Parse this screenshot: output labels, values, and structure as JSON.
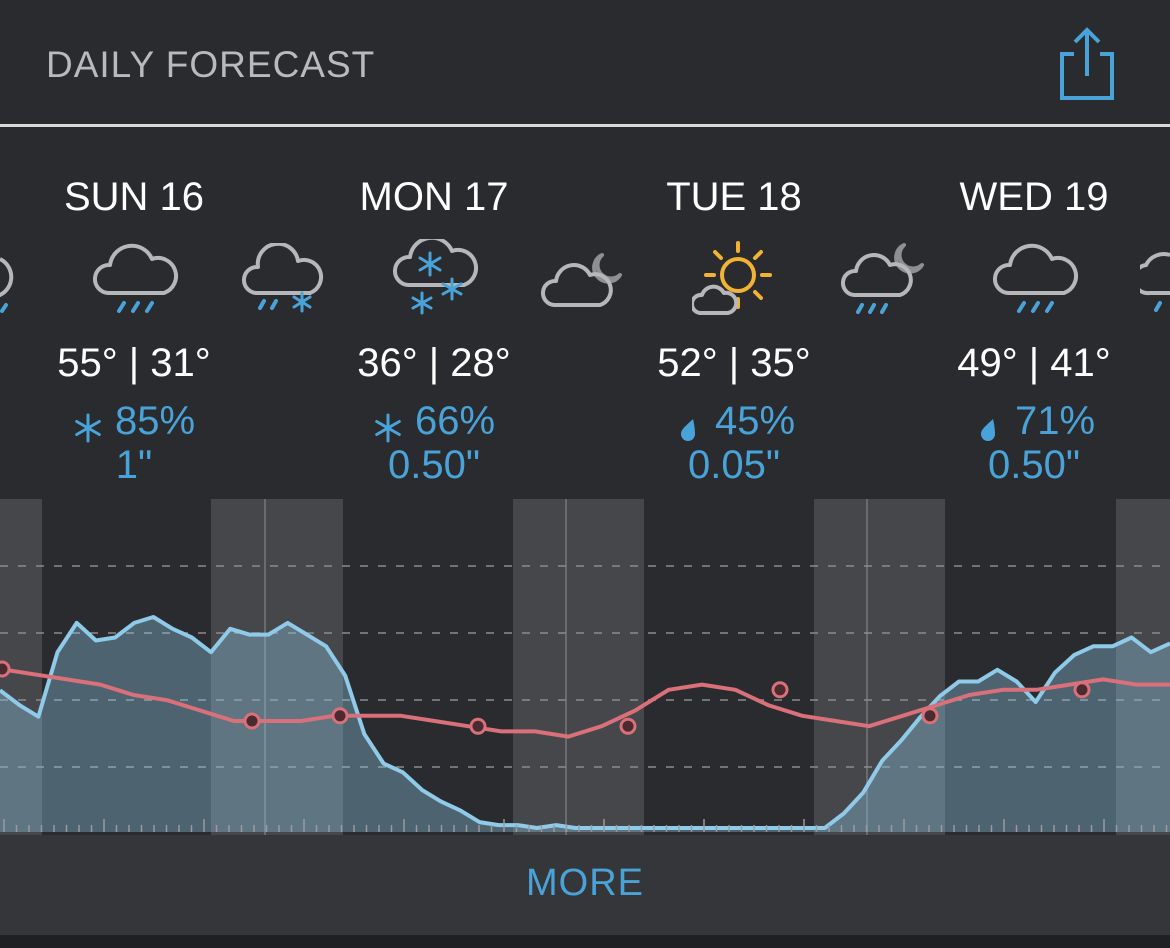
{
  "header": {
    "title": "DAILY FORECAST",
    "share_icon": "share-icon"
  },
  "days": [
    {
      "name": "SUN 16",
      "temp": "55° | 31°",
      "precip_type": "snow",
      "prob": "85%",
      "amount": "1\"",
      "icon": "rain-cloud-icon"
    },
    {
      "name": "MON 17",
      "temp": "36° | 28°",
      "precip_type": "snow",
      "prob": "66%",
      "amount": "0.50\"",
      "icon": "snow-cloud-icon"
    },
    {
      "name": "TUE 18",
      "temp": "52° | 35°",
      "precip_type": "rain",
      "prob": "45%",
      "amount": "0.05\"",
      "icon": "sun-cloud-icon"
    },
    {
      "name": "WED 19",
      "temp": "49° | 41°",
      "precip_type": "rain",
      "prob": "71%",
      "amount": "0.50\"",
      "icon": "rain-cloud-icon"
    }
  ],
  "night_icons": [
    "rain-cloud-night-icon",
    "snow-rain-cloud-night-icon",
    "cloud-moon-night-icon",
    "rain-cloud-moon-night-icon",
    "rain-cloud-night-icon"
  ],
  "colors": {
    "accent": "#4aa3d8",
    "temperature_line": "#d9707a",
    "precip_area": "#8fcbe9",
    "sun_icon": "#f2b233"
  },
  "chart_data": {
    "type": "area",
    "series": [
      {
        "kind": "precip_probability",
        "values": [
          47,
          42,
          38,
          60,
          70,
          64,
          65,
          70,
          72,
          68,
          65,
          60,
          68,
          66,
          66,
          70,
          66,
          62,
          52,
          32,
          22,
          19,
          13,
          9,
          6,
          2,
          1,
          1,
          0,
          1,
          0,
          0,
          0,
          0,
          0,
          0,
          -1,
          -2,
          -2,
          -2,
          -2,
          -2,
          -1,
          0,
          5,
          12,
          23,
          30,
          38,
          45,
          50,
          50,
          54,
          50,
          43,
          53,
          59,
          62,
          62,
          65,
          60,
          63
        ],
        "x": [
          0,
          1,
          2,
          3,
          4,
          5,
          6,
          7,
          8,
          9,
          10,
          11,
          12,
          13,
          14,
          15,
          16,
          17,
          18,
          19,
          20,
          21,
          22,
          23,
          24,
          25,
          26,
          27,
          28,
          29,
          30,
          31,
          32,
          33,
          34,
          35,
          36,
          37,
          38,
          39,
          40,
          41,
          42,
          43,
          44,
          45,
          46,
          47,
          48,
          49,
          50,
          51,
          52,
          53,
          54,
          55,
          56,
          57,
          58,
          59,
          60,
          61
        ]
      },
      {
        "kind": "temperature",
        "values": [
          48,
          47,
          46,
          45,
          43,
          42,
          40,
          38,
          38,
          38,
          39,
          39,
          39,
          38,
          37,
          36,
          36,
          35,
          37,
          40,
          44,
          45,
          44,
          41,
          39,
          38,
          37,
          39,
          41,
          43,
          44,
          44,
          45,
          46,
          45,
          45
        ],
        "x": [
          0,
          2,
          4,
          6,
          8,
          10,
          12,
          14,
          16,
          18,
          20,
          22,
          24,
          26,
          28,
          30,
          32,
          34,
          36,
          38,
          40,
          42,
          44,
          46,
          48,
          50,
          52,
          54,
          56,
          58,
          60,
          62,
          64,
          66,
          68,
          70
        ]
      }
    ],
    "markers": [
      {
        "series": "temperature",
        "x": 0
      },
      {
        "series": "temperature",
        "x": 14
      },
      {
        "series": "temperature",
        "x": 19
      },
      {
        "series": "temperature",
        "x": 27
      },
      {
        "series": "temperature",
        "x": 35
      },
      {
        "series": "temperature",
        "x": 44
      },
      {
        "series": "temperature",
        "x": 53
      },
      {
        "series": "temperature",
        "x": 62
      }
    ],
    "grid": true
  },
  "footer": {
    "more_label": "MORE"
  }
}
